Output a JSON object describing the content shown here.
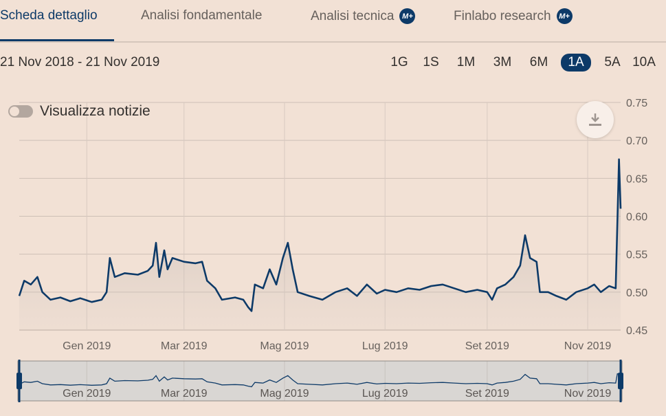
{
  "tabs": [
    {
      "label": "Scheda dettaglio",
      "active": true,
      "premium": false
    },
    {
      "label": "Analisi fondamentale",
      "active": false,
      "premium": false
    },
    {
      "label": "Analisi tecnica",
      "active": false,
      "premium": true
    },
    {
      "label": "Finlabo research",
      "active": false,
      "premium": true
    }
  ],
  "premium_badge": "M+",
  "date_range": "21 Nov 2018 - 21 Nov 2019",
  "periods": [
    "1G",
    "1S",
    "1M",
    "3M",
    "6M",
    "1A",
    "5A",
    "10A"
  ],
  "active_period": "1A",
  "toggle": {
    "label": "Visualizza notizie",
    "on": false
  },
  "download_icon": "download-icon",
  "colors": {
    "line": "#0d3a68",
    "accent": "#0d3a68",
    "background": "#f2e1d5",
    "navigator_bg": "#d9d6d3"
  },
  "chart_data": {
    "type": "line",
    "x_start": "2018-11-21",
    "x_end": "2019-11-21",
    "xticks": [
      {
        "label": "Gen 2019",
        "date": "2019-01-01"
      },
      {
        "label": "Mar 2019",
        "date": "2019-03-01"
      },
      {
        "label": "Mag 2019",
        "date": "2019-05-01"
      },
      {
        "label": "Lug 2019",
        "date": "2019-07-01"
      },
      {
        "label": "Set 2019",
        "date": "2019-09-01"
      },
      {
        "label": "Nov 2019",
        "date": "2019-11-01"
      }
    ],
    "yticks": [
      "0.45",
      "0.50",
      "0.55",
      "0.60",
      "0.65",
      "0.70",
      "0.75"
    ],
    "ylim": [
      0.45,
      0.75
    ],
    "grid": true,
    "area_fill": true,
    "series": [
      {
        "values": [
          [
            "2018-11-21",
            0.495
          ],
          [
            "2018-11-24",
            0.515
          ],
          [
            "2018-11-28",
            0.51
          ],
          [
            "2018-12-02",
            0.52
          ],
          [
            "2018-12-05",
            0.5
          ],
          [
            "2018-12-10",
            0.49
          ],
          [
            "2018-12-16",
            0.493
          ],
          [
            "2018-12-22",
            0.488
          ],
          [
            "2018-12-28",
            0.492
          ],
          [
            "2019-01-04",
            0.487
          ],
          [
            "2019-01-10",
            0.49
          ],
          [
            "2019-01-13",
            0.5
          ],
          [
            "2019-01-15",
            0.545
          ],
          [
            "2019-01-18",
            0.52
          ],
          [
            "2019-01-24",
            0.525
          ],
          [
            "2019-02-01",
            0.523
          ],
          [
            "2019-02-07",
            0.528
          ],
          [
            "2019-02-10",
            0.535
          ],
          [
            "2019-02-12",
            0.565
          ],
          [
            "2019-02-14",
            0.52
          ],
          [
            "2019-02-17",
            0.555
          ],
          [
            "2019-02-19",
            0.53
          ],
          [
            "2019-02-22",
            0.545
          ],
          [
            "2019-03-01",
            0.54
          ],
          [
            "2019-03-08",
            0.538
          ],
          [
            "2019-03-12",
            0.54
          ],
          [
            "2019-03-15",
            0.515
          ],
          [
            "2019-03-20",
            0.505
          ],
          [
            "2019-03-24",
            0.49
          ],
          [
            "2019-04-01",
            0.493
          ],
          [
            "2019-04-06",
            0.49
          ],
          [
            "2019-04-09",
            0.48
          ],
          [
            "2019-04-11",
            0.475
          ],
          [
            "2019-04-13",
            0.51
          ],
          [
            "2019-04-18",
            0.505
          ],
          [
            "2019-04-22",
            0.53
          ],
          [
            "2019-04-26",
            0.51
          ],
          [
            "2019-04-30",
            0.545
          ],
          [
            "2019-05-03",
            0.565
          ],
          [
            "2019-05-06",
            0.53
          ],
          [
            "2019-05-09",
            0.5
          ],
          [
            "2019-05-16",
            0.495
          ],
          [
            "2019-05-24",
            0.49
          ],
          [
            "2019-06-01",
            0.5
          ],
          [
            "2019-06-08",
            0.505
          ],
          [
            "2019-06-14",
            0.495
          ],
          [
            "2019-06-20",
            0.51
          ],
          [
            "2019-06-26",
            0.498
          ],
          [
            "2019-07-01",
            0.503
          ],
          [
            "2019-07-08",
            0.5
          ],
          [
            "2019-07-15",
            0.505
          ],
          [
            "2019-07-22",
            0.503
          ],
          [
            "2019-07-29",
            0.508
          ],
          [
            "2019-08-05",
            0.51
          ],
          [
            "2019-08-12",
            0.505
          ],
          [
            "2019-08-19",
            0.5
          ],
          [
            "2019-08-26",
            0.503
          ],
          [
            "2019-09-01",
            0.5
          ],
          [
            "2019-09-04",
            0.49
          ],
          [
            "2019-09-07",
            0.505
          ],
          [
            "2019-09-12",
            0.51
          ],
          [
            "2019-09-17",
            0.52
          ],
          [
            "2019-09-21",
            0.535
          ],
          [
            "2019-09-24",
            0.575
          ],
          [
            "2019-09-27",
            0.545
          ],
          [
            "2019-10-01",
            0.54
          ],
          [
            "2019-10-03",
            0.5
          ],
          [
            "2019-10-08",
            0.5
          ],
          [
            "2019-10-13",
            0.495
          ],
          [
            "2019-10-19",
            0.49
          ],
          [
            "2019-10-25",
            0.5
          ],
          [
            "2019-11-01",
            0.505
          ],
          [
            "2019-11-05",
            0.51
          ],
          [
            "2019-11-09",
            0.5
          ],
          [
            "2019-11-14",
            0.508
          ],
          [
            "2019-11-18",
            0.505
          ],
          [
            "2019-11-19",
            0.59
          ],
          [
            "2019-11-20",
            0.675
          ],
          [
            "2019-11-21",
            0.61
          ]
        ]
      }
    ]
  }
}
